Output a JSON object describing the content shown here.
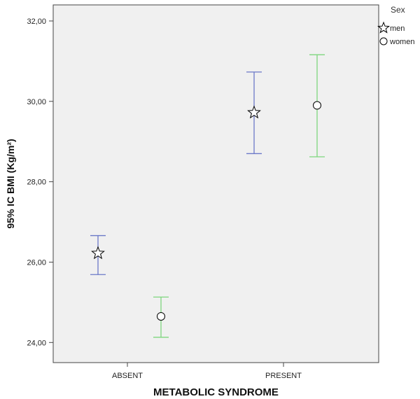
{
  "chart_data": {
    "type": "errorbar",
    "title": "",
    "xlabel": "METABOLIC SYNDROME",
    "ylabel": "95% IC BMI (Kg/m²)",
    "categories": [
      "ABSENT",
      "PRESENT"
    ],
    "ylim": [
      23.5,
      32.4
    ],
    "yticks": [
      "24,00",
      "26,00",
      "28,00",
      "30,00",
      "32,00"
    ],
    "ytick_values": [
      24,
      26,
      28,
      30,
      32
    ],
    "grid": false,
    "legend": {
      "title": "Sex",
      "position": "top-right"
    },
    "series": [
      {
        "name": "men",
        "marker": "star",
        "color": "#6b79c8",
        "means": [
          26.22,
          29.72
        ],
        "lower": [
          25.69,
          28.7
        ],
        "upper": [
          26.66,
          30.73
        ]
      },
      {
        "name": "women",
        "marker": "circle",
        "color": "#7ed67e",
        "means": [
          24.65,
          29.9
        ],
        "lower": [
          24.13,
          28.62
        ],
        "upper": [
          25.13,
          31.16
        ]
      }
    ]
  },
  "colors": {
    "plot_background": "#f0f0f0",
    "frame": "#444444"
  }
}
